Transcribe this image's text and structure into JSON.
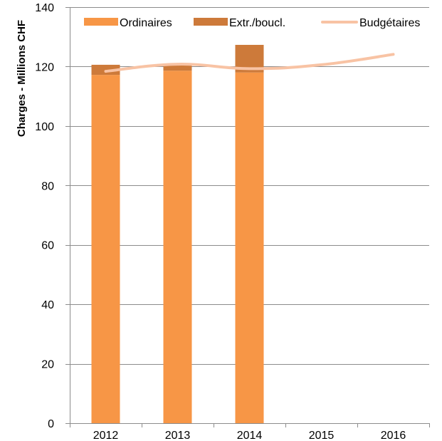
{
  "chart_data": {
    "type": "bar",
    "categories": [
      "2012",
      "2013",
      "2014",
      "2015",
      "2016"
    ],
    "series": [
      {
        "name": "Ordinaires",
        "kind": "bar",
        "stack": "charges",
        "color": "#F79646",
        "values": [
          117.2,
          118.6,
          118.0,
          null,
          null
        ]
      },
      {
        "name": "Extr./boucl.",
        "kind": "bar",
        "stack": "charges",
        "color": "#CD7A3A",
        "values": [
          3.4,
          2.0,
          9.3,
          null,
          null
        ]
      },
      {
        "name": "Budgétaires",
        "kind": "line",
        "color": "#F8C3A4",
        "values": [
          118.4,
          120.8,
          119.3,
          120.6,
          124.1
        ]
      }
    ],
    "ylabel": "Charges - Millions CHF",
    "xlabel": "",
    "ylim": [
      0,
      140
    ],
    "yticks": [
      0,
      20,
      40,
      60,
      80,
      100,
      120,
      140
    ],
    "grid": true,
    "legend_position": "top"
  }
}
